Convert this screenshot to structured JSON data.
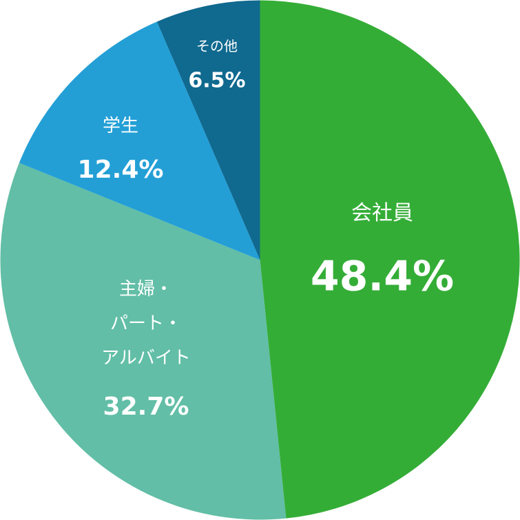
{
  "chart_data": {
    "type": "pie",
    "categories": [
      "会社員",
      "主婦・\nパート・\nアルバイト",
      "学生",
      "その他"
    ],
    "values": [
      48.4,
      32.7,
      12.4,
      6.5
    ],
    "value_labels": [
      "48.4%",
      "32.7%",
      "12.4%",
      "6.5%"
    ],
    "colors": [
      "#34ad37",
      "#62bea6",
      "#239fd6",
      "#10698f"
    ]
  }
}
